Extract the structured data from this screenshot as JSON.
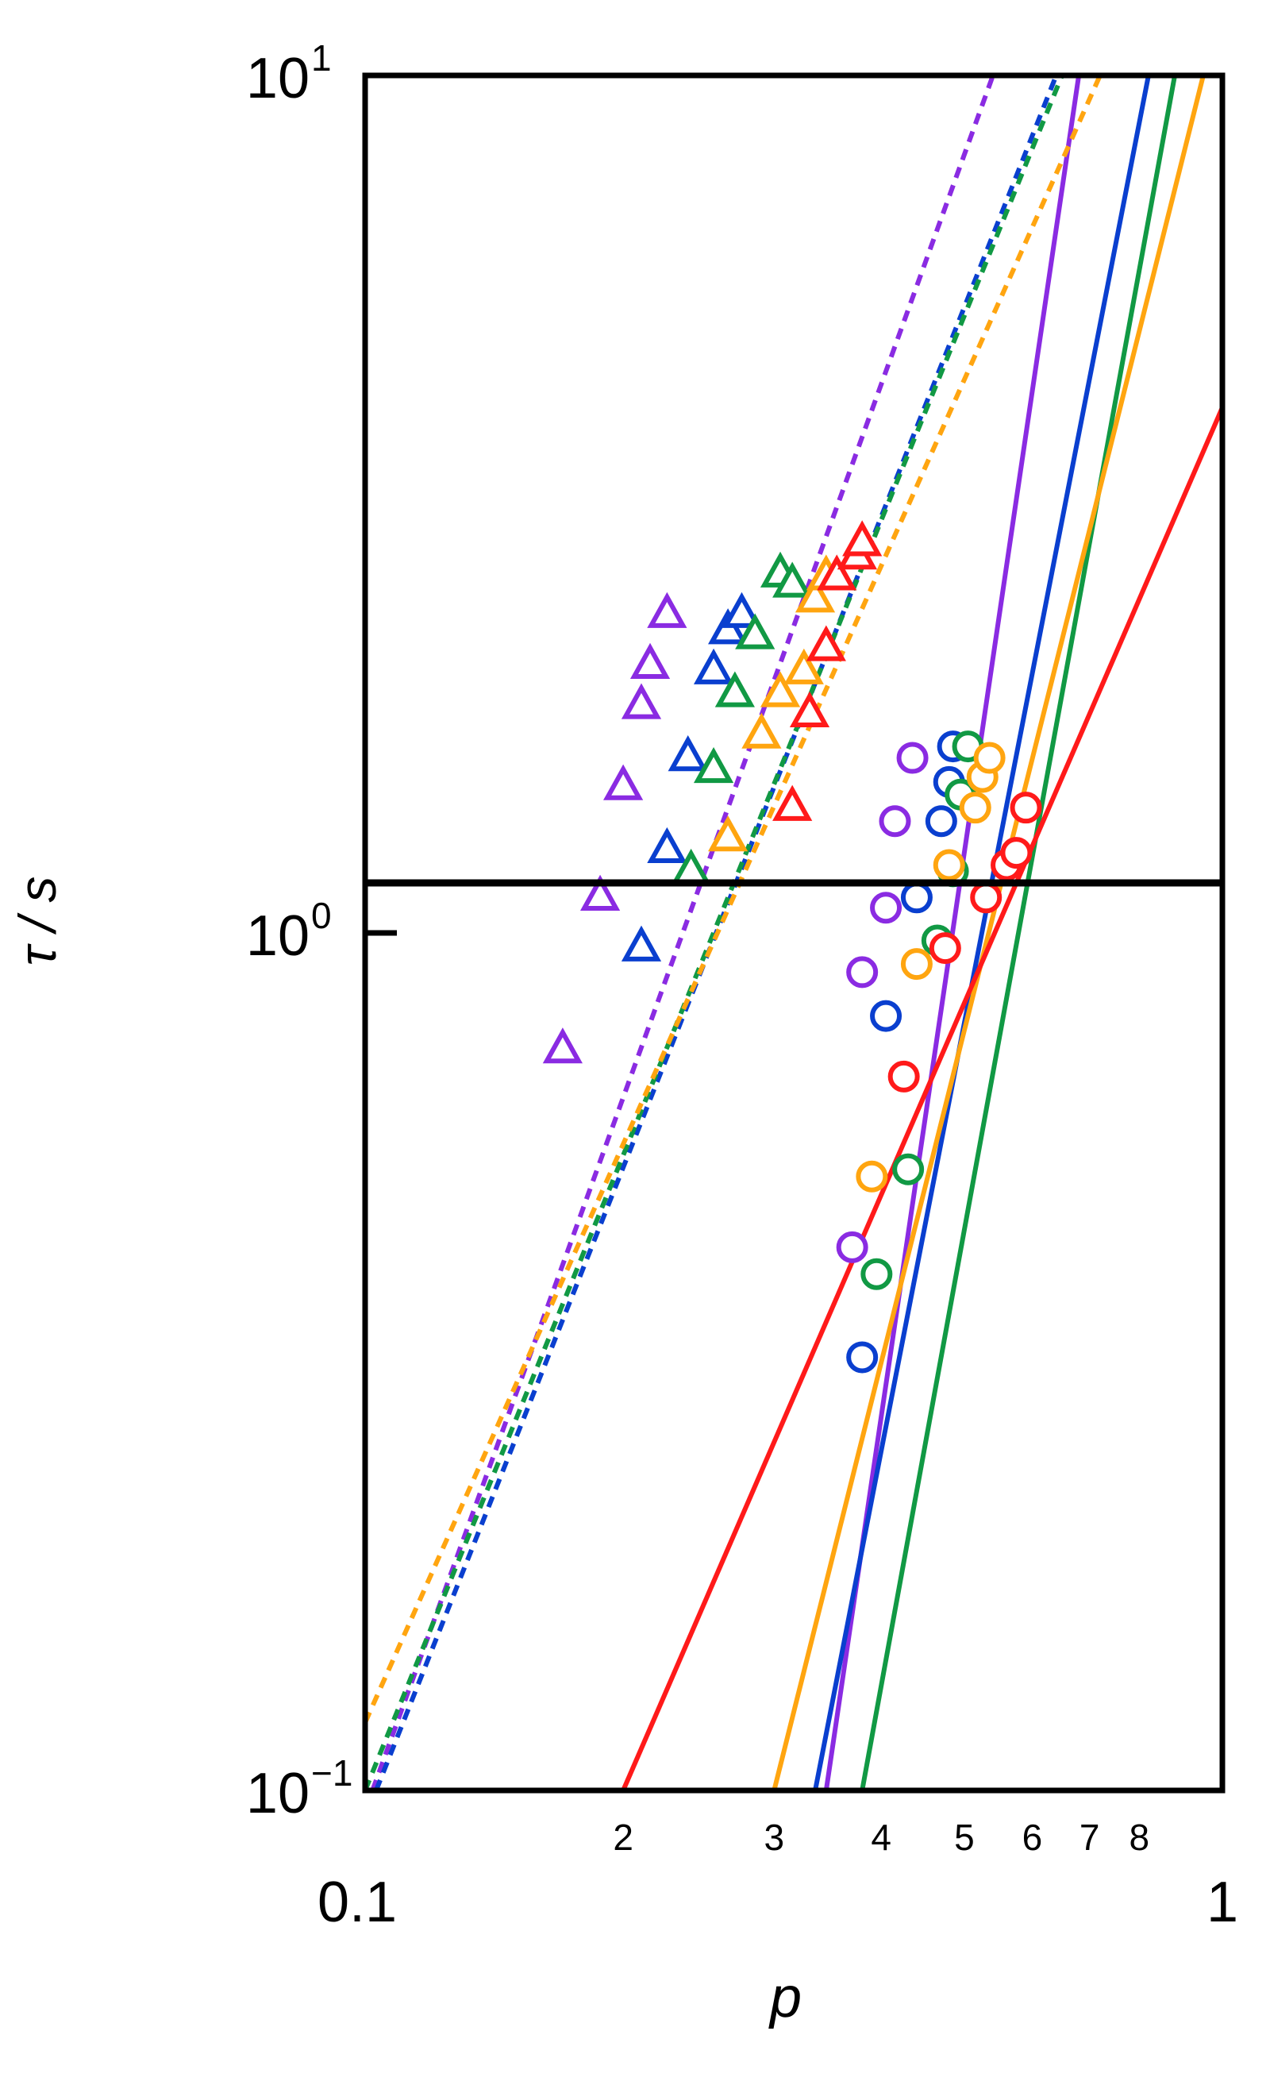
{
  "chart_data": {
    "type": "scatter",
    "title": "",
    "xlabel": "p",
    "ylabel": "τ / s",
    "xscale": "log",
    "yscale": "log",
    "xlim": [
      0.1,
      1
    ],
    "ylim": [
      0.1,
      10
    ],
    "grid": false,
    "legend": "none",
    "x_major_ticks": [
      {
        "value": 0.1,
        "label": "0.1"
      },
      {
        "value": 1,
        "label": "1"
      }
    ],
    "x_minor_ticks": [
      {
        "value": 0.2,
        "label": "2"
      },
      {
        "value": 0.3,
        "label": "3"
      },
      {
        "value": 0.4,
        "label": "4"
      },
      {
        "value": 0.5,
        "label": "5"
      },
      {
        "value": 0.6,
        "label": "6"
      },
      {
        "value": 0.7,
        "label": "7"
      },
      {
        "value": 0.8,
        "label": "8"
      }
    ],
    "y_ticks": [
      {
        "value": 0.1,
        "base": "10",
        "exp": "−1"
      },
      {
        "value": 1,
        "base": "10",
        "exp": "0"
      },
      {
        "value": 10,
        "base": "10",
        "exp": "1"
      }
    ],
    "series": [
      {
        "color": "#8a2be2",
        "marker": "triangle",
        "line": "dashed",
        "fit": [
          [
            0.102,
            0.1
          ],
          [
            0.54,
            10
          ]
        ],
        "points": [
          [
            0.17,
            0.73
          ],
          [
            0.188,
            1.1
          ],
          [
            0.2,
            1.48
          ],
          [
            0.21,
            1.84
          ],
          [
            0.215,
            2.05
          ],
          [
            0.225,
            2.35
          ]
        ]
      },
      {
        "color": "#8a2be2",
        "marker": "circle",
        "line": "solid",
        "fit": [
          [
            0.345,
            0.1
          ],
          [
            0.68,
            10
          ]
        ],
        "points": [
          [
            0.37,
            0.43
          ],
          [
            0.38,
            0.9
          ],
          [
            0.405,
            1.07
          ],
          [
            0.415,
            1.35
          ],
          [
            0.435,
            1.6
          ]
        ]
      },
      {
        "color": "#0a3fcf",
        "marker": "triangle",
        "line": "dashed",
        "fit": [
          [
            0.103,
            0.1
          ],
          [
            0.64,
            10
          ]
        ],
        "points": [
          [
            0.21,
            0.96
          ],
          [
            0.225,
            1.25
          ],
          [
            0.238,
            1.6
          ],
          [
            0.255,
            2.02
          ],
          [
            0.265,
            2.25
          ],
          [
            0.275,
            2.35
          ]
        ]
      },
      {
        "color": "#0a3fcf",
        "marker": "circle",
        "line": "solid",
        "fit": [
          [
            0.335,
            0.1
          ],
          [
            0.82,
            10
          ]
        ],
        "points": [
          [
            0.38,
            0.32
          ],
          [
            0.405,
            0.8
          ],
          [
            0.44,
            1.1
          ],
          [
            0.47,
            1.35
          ],
          [
            0.48,
            1.5
          ],
          [
            0.485,
            1.65
          ]
        ]
      },
      {
        "color": "#119944",
        "marker": "triangle",
        "line": "dashed",
        "fit": [
          [
            0.1,
            0.1
          ],
          [
            0.65,
            10
          ]
        ],
        "points": [
          [
            0.24,
            1.18
          ],
          [
            0.255,
            1.55
          ],
          [
            0.27,
            1.9
          ],
          [
            0.285,
            2.22
          ],
          [
            0.305,
            2.62
          ],
          [
            0.315,
            2.55
          ]
        ]
      },
      {
        "color": "#119944",
        "marker": "circle",
        "line": "solid",
        "fit": [
          [
            0.38,
            0.1
          ],
          [
            0.88,
            10
          ]
        ],
        "points": [
          [
            0.395,
            0.4
          ],
          [
            0.43,
            0.53
          ],
          [
            0.465,
            0.98
          ],
          [
            0.485,
            1.18
          ],
          [
            0.495,
            1.45
          ],
          [
            0.505,
            1.65
          ]
        ]
      },
      {
        "color": "#ffa510",
        "marker": "triangle",
        "line": "dashed",
        "fit": [
          [
            0.1,
            0.12
          ],
          [
            0.72,
            10
          ]
        ],
        "points": [
          [
            0.265,
            1.29
          ],
          [
            0.29,
            1.7
          ],
          [
            0.305,
            1.9
          ],
          [
            0.325,
            2.02
          ],
          [
            0.335,
            2.45
          ],
          [
            0.345,
            2.6
          ]
        ]
      },
      {
        "color": "#ffa510",
        "marker": "circle",
        "line": "solid",
        "fit": [
          [
            0.3,
            0.1
          ],
          [
            0.95,
            10
          ]
        ],
        "points": [
          [
            0.39,
            0.52
          ],
          [
            0.44,
            0.92
          ],
          [
            0.48,
            1.2
          ],
          [
            0.515,
            1.4
          ],
          [
            0.525,
            1.52
          ],
          [
            0.535,
            1.6
          ]
        ]
      },
      {
        "color": "#ff1a1a",
        "marker": "triangle",
        "line": "dashed",
        "fit": null,
        "points": [
          [
            0.315,
            1.4
          ],
          [
            0.33,
            1.8
          ],
          [
            0.345,
            2.15
          ],
          [
            0.355,
            2.6
          ],
          [
            0.375,
            2.75
          ],
          [
            0.38,
            2.85
          ]
        ]
      },
      {
        "color": "#ff1a1a",
        "marker": "circle",
        "line": "solid",
        "fit": [
          [
            0.2,
            0.1
          ],
          [
            1.0,
            4.1
          ]
        ],
        "points": [
          [
            0.425,
            0.68
          ],
          [
            0.475,
            0.96
          ],
          [
            0.53,
            1.1
          ],
          [
            0.56,
            1.2
          ],
          [
            0.575,
            1.24
          ],
          [
            0.59,
            1.4
          ]
        ]
      }
    ]
  }
}
